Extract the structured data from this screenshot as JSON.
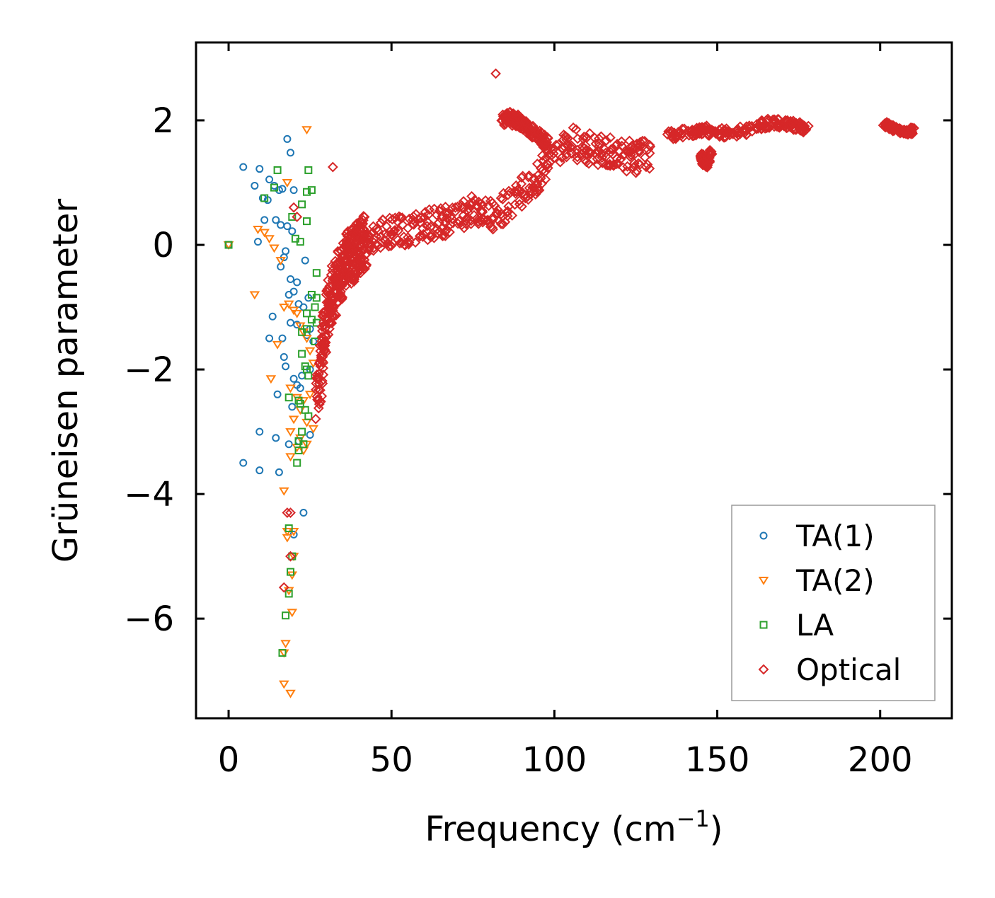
{
  "chart_data": {
    "type": "scatter",
    "title": "",
    "xlabel": "Frequency (cm",
    "xlabel_superscript": "−1",
    "xlabel_close": ")",
    "ylabel": "Grüneisen parameter",
    "xlim": [
      -10,
      222
    ],
    "ylim": [
      -7.6,
      3.25
    ],
    "xticks": [
      0,
      50,
      100,
      150,
      200
    ],
    "xtick_labels": [
      "0",
      "50",
      "100",
      "150",
      "200"
    ],
    "yticks": [
      2,
      0,
      -2,
      -4,
      -6
    ],
    "ytick_labels": [
      "2",
      "0",
      "−2",
      "−4",
      "−6"
    ],
    "grid": false,
    "legend_position": "lower-right",
    "series": [
      {
        "name": "TA(1)",
        "marker": "circle",
        "color": "#1f77b4",
        "x": [
          0,
          4.5,
          9.5,
          12.5,
          14,
          15.5,
          16.5,
          18,
          19,
          20,
          8,
          10.5,
          12,
          14.5,
          16,
          18,
          19.5,
          11,
          9,
          17.5,
          17,
          16,
          19,
          21,
          23.5,
          13.5,
          18.5,
          20,
          21.5,
          23,
          24.5,
          12.5,
          16.5,
          19,
          21,
          25,
          17,
          17.5,
          20,
          22.5,
          15,
          24,
          19.5,
          26,
          25,
          22,
          21,
          9.5,
          14.5,
          18.5,
          21.5,
          25,
          4.5,
          9.5,
          15.5,
          23,
          20
        ],
        "y": [
          0,
          1.25,
          1.22,
          1.05,
          0.95,
          0.88,
          0.9,
          1.7,
          1.48,
          0.88,
          0.95,
          0.75,
          0.72,
          0.4,
          0.32,
          0.3,
          0.22,
          0.4,
          0.05,
          -0.1,
          -0.2,
          -0.35,
          -0.55,
          -0.6,
          -0.25,
          -1.15,
          -0.8,
          -0.75,
          -0.95,
          -1.0,
          -0.85,
          -1.5,
          -1.5,
          -1.25,
          -1.28,
          -1.35,
          -1.8,
          -1.95,
          -2.15,
          -2.1,
          -2.4,
          -1.45,
          -2.6,
          -1.55,
          -2.0,
          -2.3,
          -2.25,
          -3.0,
          -3.1,
          -3.2,
          -3.15,
          -3.05,
          -3.5,
          -3.62,
          -3.65,
          -4.3,
          -4.65
        ]
      },
      {
        "name": "TA(2)",
        "marker": "triangle-down",
        "color": "#ff7f0e",
        "x": [
          0,
          24,
          9,
          11,
          12.5,
          14,
          16,
          8,
          17,
          18.5,
          20,
          21,
          22,
          23,
          24,
          25,
          26,
          15,
          13,
          19,
          21,
          23,
          25,
          22,
          24,
          26,
          20,
          22,
          24,
          19,
          21,
          23,
          19,
          17,
          18,
          20,
          18,
          20,
          19.5,
          18.5,
          19.5,
          17,
          17.5,
          17,
          19,
          18
        ],
        "y": [
          0,
          1.85,
          0.25,
          0.2,
          0.1,
          -0.05,
          -0.25,
          -0.8,
          -1.0,
          -0.95,
          -1.05,
          -1.1,
          -1.3,
          -1.4,
          -1.5,
          -1.7,
          -1.9,
          -1.6,
          -2.15,
          -2.3,
          -2.45,
          -2.5,
          -2.4,
          -2.65,
          -2.85,
          -2.95,
          -2.8,
          -3.1,
          -3.2,
          -3.0,
          -3.25,
          -3.3,
          -3.4,
          -3.95,
          -4.6,
          -4.6,
          -4.7,
          -5.0,
          -5.3,
          -5.55,
          -5.9,
          -6.55,
          -6.4,
          -7.05,
          -7.2,
          1.0
        ]
      },
      {
        "name": "LA",
        "marker": "square",
        "color": "#2ca02c",
        "x": [
          0,
          15,
          24.5,
          25.5,
          11,
          14,
          19.5,
          22.5,
          24,
          20.5,
          22,
          24,
          27,
          25.5,
          27,
          26.5,
          24,
          25.5,
          27,
          24,
          22.5,
          26.5,
          22.5,
          23.5,
          24,
          24.5,
          18.5,
          21.5,
          22,
          23.5,
          24.5,
          22.5,
          21.5,
          21.5,
          18.5,
          19,
          19.5,
          18.5,
          17.5,
          16.5,
          23,
          21
        ],
        "y": [
          0,
          1.2,
          1.2,
          0.88,
          0.75,
          0.92,
          0.45,
          0.65,
          0.85,
          0.1,
          0.05,
          0.38,
          -0.45,
          -0.8,
          -0.85,
          -1.0,
          -1.1,
          -1.2,
          -1.25,
          -1.35,
          -1.4,
          -1.55,
          -1.75,
          -1.95,
          -2.0,
          -2.1,
          -2.45,
          -2.5,
          -2.55,
          -2.65,
          -2.75,
          -3.0,
          -3.15,
          -3.3,
          -4.55,
          -5.25,
          -5.0,
          -5.6,
          -5.95,
          -6.55,
          -3.2,
          -3.5
        ]
      },
      {
        "name": "Optical",
        "marker": "diamond",
        "color": "#d62728",
        "x": [
          82,
          32,
          19,
          18,
          17,
          19,
          20,
          21
        ],
        "y": [
          2.75,
          1.25,
          -4.3,
          -4.3,
          -5.5,
          -5.0,
          0.6,
          0.45
        ],
        "dense_segments": [
          {
            "x": [
              27,
              28,
              29,
              30,
              31,
              32,
              33,
              34,
              35,
              36,
              37,
              38,
              39,
              40,
              41,
              42
            ],
            "y": [
              -2.6,
              -2.1,
              -1.6,
              -1.25,
              -1.0,
              -0.8,
              -0.65,
              -0.5,
              -0.4,
              -0.3,
              -0.22,
              -0.15,
              -0.1,
              -0.05,
              0.0,
              0.05
            ],
            "spread": 0.9
          },
          {
            "x": [
              40,
              45,
              50,
              55,
              60,
              65,
              70,
              75,
              80,
              85,
              90,
              95,
              100,
              105,
              110,
              115,
              120,
              125,
              130
            ],
            "y": [
              0.05,
              0.15,
              0.2,
              0.25,
              0.3,
              0.35,
              0.45,
              0.55,
              0.45,
              0.6,
              0.85,
              1.1,
              1.4,
              1.65,
              1.55,
              1.5,
              1.45,
              1.4,
              1.45
            ],
            "spread": 0.5
          },
          {
            "x": [
              84,
              86,
              88,
              90,
              92,
              94,
              96,
              98
            ],
            "y": [
              2.0,
              2.05,
              2.0,
              1.95,
              1.85,
              1.8,
              1.7,
              1.6
            ],
            "spread": 0.2
          },
          {
            "x": [
              135,
              140,
              145,
              150,
              155,
              160,
              165,
              170,
              175,
              178
            ],
            "y": [
              1.75,
              1.8,
              1.85,
              1.8,
              1.8,
              1.85,
              1.95,
              1.95,
              1.9,
              1.85
            ],
            "spread": 0.15
          },
          {
            "x": [
              145,
              146,
              147,
              148
            ],
            "y": [
              1.4,
              1.35,
              1.3,
              1.5
            ],
            "spread": 0.15
          },
          {
            "x": [
              201,
              203,
              205,
              207,
              209,
              210
            ],
            "y": [
              1.95,
              1.9,
              1.85,
              1.82,
              1.8,
              1.85
            ],
            "spread": 0.08
          }
        ]
      }
    ]
  }
}
